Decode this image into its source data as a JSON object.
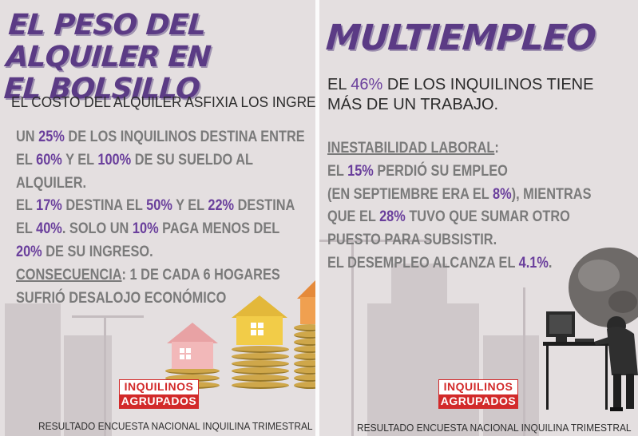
{
  "left_panel": {
    "title_line1": "EL PESO DEL ALQUILER EN",
    "title_line2": "EL BOLSILLO",
    "subtitle": "EL COSTO DEL ALQUILER ASFIXIA LOS INGRESOS",
    "body": {
      "l1_a": "UN ",
      "l1_b": "25%",
      "l1_c": " DE LOS INQUILINOS DESTINA ENTRE",
      "l2_a": "EL ",
      "l2_b": "60%",
      "l2_c": " Y EL ",
      "l2_d": "100%",
      "l2_e": " DE SU SUELDO AL",
      "l3": "ALQUILER.",
      "l4_a": "EL ",
      "l4_b": "17%",
      "l4_c": " DESTINA EL ",
      "l4_d": "50%",
      "l4_e": " Y EL ",
      "l4_f": "22%",
      "l4_g": " DESTINA",
      "l5_a": "EL ",
      "l5_b": "40%",
      "l5_c": ". SOLO UN ",
      "l5_d": "10%",
      "l5_e": " PAGA MENOS DEL",
      "l6_a": "20%",
      "l6_b": " DE SU INGRESO.",
      "l7_a": "CONSECUENCIA",
      "l7_b": ": 1 DE CADA 6 HOGARES",
      "l8": "SUFRIÓ DESALOJO ECONÓMICO"
    },
    "logo_line1": "INQUILINOS",
    "logo_line2": "AGRUPADOS",
    "footer": "RESULTADO ENCUESTA NACIONAL INQUILINA TRIMESTRAL"
  },
  "right_panel": {
    "title": "MULTIEMPLEO",
    "lede_a": "EL ",
    "lede_b": "46%",
    "lede_c": " DE LOS INQUILINOS TIENE",
    "lede_line2": "MÁS DE UN TRABAJO.",
    "body": {
      "l1_a": "INESTABILIDAD LABORAL",
      "l1_b": ":",
      "l2_a": "EL ",
      "l2_b": "15%",
      "l2_c": " PERDIÓ SU EMPLEO",
      "l3_a": "(EN SEPTIEMBRE ERA EL ",
      "l3_b": "8%",
      "l3_c": "), MIENTRAS",
      "l4_a": "QUE EL ",
      "l4_b": "28%",
      "l4_c": " TUVO QUE SUMAR OTRO",
      "l5": "PUESTO PARA SUBSISTIR.",
      "l6_a": "EL DESEMPLEO ALCANZA EL ",
      "l6_b": "4.1%",
      "l6_c": "."
    },
    "logo_line1": "INQUILINOS",
    "logo_line2": "AGRUPADOS",
    "footer": "RESULTADO ENCUESTA NACIONAL INQUILINA TRIMESTRAL"
  },
  "colors": {
    "accent_purple": "#5b3b85",
    "highlight_purple": "#6a3f9c",
    "body_gray": "#7a7a7a",
    "brand_red": "#d22a2a",
    "background": "#e4dfe0"
  },
  "icons": [
    "house-on-coins-illustration",
    "worker-with-boulder-illustration"
  ]
}
